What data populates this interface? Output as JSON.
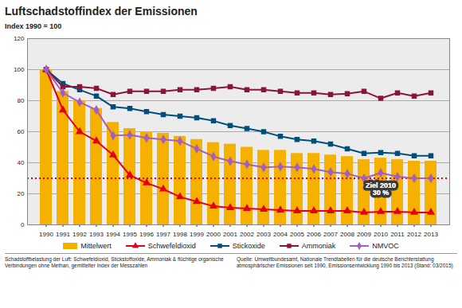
{
  "chart_data": {
    "type": "bar",
    "title": "Luftschadstoffindex der Emissionen",
    "subtitle": "Index 1990 = 100",
    "caption": "Schadstoffbelastung der Luft: Schwefeldioxid, Stickstoffoxide, Ammoniak & flüchtige organische Verbindungen ohne Methan, gemittelter Index der Messzahlen",
    "source": "Quelle: Umweltbundesamt, Nationale Trendtabellen für die deutsche Berichterstattung atmosphärischer Emissionen seit 1990, Emissionsentwicklung 1990 bis 2013 (Stand: 03/2015)",
    "categories": [
      "1990",
      "1991",
      "1992",
      "1993",
      "1994",
      "1995",
      "1996",
      "1997",
      "1998",
      "1999",
      "2000",
      "2001",
      "2002",
      "2003",
      "2004",
      "2005",
      "2006",
      "2007",
      "2008",
      "2009",
      "2010",
      "2011",
      "2012",
      "2013"
    ],
    "series": [
      {
        "name": "Mittelwert",
        "type": "bar",
        "color": "#f5b000",
        "values": [
          100,
          86,
          80,
          75,
          66,
          62,
          60,
          59,
          57,
          55,
          53,
          52,
          50,
          48,
          48,
          46,
          46,
          45,
          44,
          42,
          43,
          42,
          41,
          41
        ]
      },
      {
        "name": "Schwefeldioxid",
        "type": "line",
        "marker": "triangle",
        "color": "#e2001a",
        "values": [
          100,
          74,
          60,
          54,
          45,
          32,
          27,
          23,
          18,
          15,
          12,
          11,
          10.5,
          10,
          9.5,
          9,
          9,
          9,
          9,
          8,
          8.5,
          8.5,
          8,
          8
        ]
      },
      {
        "name": "Stickoxide",
        "type": "line",
        "marker": "square",
        "color": "#004f7a",
        "values": [
          100,
          91,
          87,
          83,
          76,
          75,
          73,
          71,
          70,
          69,
          67,
          64,
          62,
          60,
          57,
          55,
          54,
          52,
          49,
          46,
          46.5,
          46,
          44.5,
          44.5
        ]
      },
      {
        "name": "Ammoniak",
        "type": "line",
        "marker": "square",
        "color": "#8a1538",
        "values": [
          100,
          89,
          89,
          88,
          84,
          86,
          86,
          86,
          87,
          87,
          88,
          89,
          87,
          87,
          86,
          85,
          85,
          84,
          84.5,
          86,
          81.5,
          85,
          83,
          85
        ]
      },
      {
        "name": "NMVOC",
        "type": "line",
        "marker": "diamond",
        "color": "#a35fc0",
        "values": [
          100,
          85,
          79,
          74,
          57.5,
          58,
          56,
          55,
          54,
          49,
          44,
          41,
          39,
          37,
          37.5,
          37,
          36,
          34,
          33,
          30,
          33.5,
          31,
          30,
          30
        ]
      }
    ],
    "annotations": [
      {
        "text": [
          "Ziel 2010",
          "30 %"
        ],
        "x": "2010",
        "y": 30,
        "color": "#e2001a",
        "line_style": "dotted"
      }
    ],
    "ylim": [
      0,
      120
    ],
    "yticks": [
      0,
      20,
      40,
      60,
      80,
      100,
      120
    ],
    "grid": true,
    "legend": "bottom"
  }
}
